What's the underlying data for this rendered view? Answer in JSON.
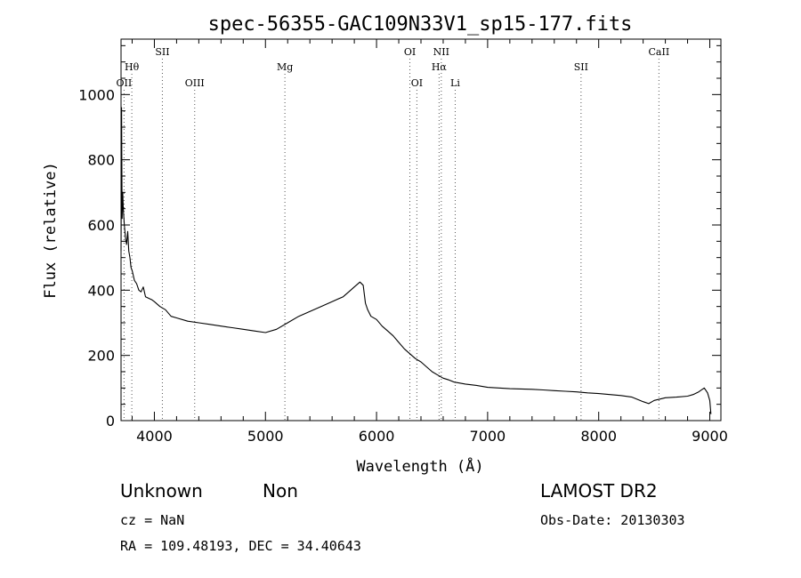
{
  "chart_data": {
    "type": "line",
    "title": "spec-56355-GAC109N33V1_sp15-177.fits",
    "xlabel": "Wavelength (Å)",
    "ylabel": "Flux (relative)",
    "xlim": [
      3700,
      9100
    ],
    "ylim": [
      0,
      1170
    ],
    "xticks": [
      4000,
      5000,
      6000,
      7000,
      8000,
      9000
    ],
    "yticks": [
      0,
      200,
      400,
      600,
      800,
      1000
    ],
    "grid": false,
    "line_color": "#000000",
    "marker_color": "#555555",
    "series": [
      {
        "x": [
          3700,
          3705,
          3710,
          3715,
          3720,
          3730,
          3740,
          3750,
          3760,
          3770,
          3780,
          3790,
          3800,
          3820,
          3840,
          3860,
          3880,
          3900,
          3920,
          3950,
          3980,
          4000,
          4050,
          4100,
          4150,
          4200,
          4300,
          4400,
          4500,
          4600,
          4700,
          4800,
          4900,
          5000,
          5100,
          5200,
          5300,
          5400,
          5500,
          5600,
          5700,
          5750,
          5800,
          5850,
          5880,
          5900,
          5920,
          5950,
          6000,
          6050,
          6100,
          6150,
          6200,
          6250,
          6300,
          6350,
          6400,
          6450,
          6500,
          6550,
          6600,
          6650,
          6700,
          6750,
          6800,
          6900,
          7000,
          7100,
          7200,
          7300,
          7400,
          7500,
          7600,
          7700,
          7800,
          7900,
          8000,
          8100,
          8200,
          8300,
          8400,
          8450,
          8500,
          8600,
          8700,
          8800,
          8850,
          8900,
          8950,
          8980,
          9000,
          9010
        ],
        "y": [
          520,
          960,
          620,
          700,
          650,
          600,
          560,
          540,
          580,
          520,
          500,
          470,
          460,
          430,
          420,
          400,
          395,
          410,
          380,
          375,
          370,
          365,
          350,
          340,
          320,
          315,
          305,
          300,
          295,
          290,
          285,
          280,
          275,
          270,
          280,
          300,
          320,
          335,
          350,
          365,
          380,
          395,
          410,
          425,
          415,
          360,
          340,
          320,
          310,
          290,
          275,
          260,
          240,
          220,
          205,
          190,
          180,
          165,
          150,
          140,
          130,
          125,
          118,
          115,
          112,
          108,
          102,
          100,
          98,
          97,
          96,
          94,
          92,
          90,
          88,
          85,
          83,
          80,
          77,
          72,
          58,
          52,
          62,
          70,
          72,
          75,
          80,
          88,
          100,
          85,
          62,
          20
        ]
      }
    ],
    "lines_top": [
      {
        "label": "SII",
        "x": 4072
      },
      {
        "label": "OI",
        "x": 6300
      },
      {
        "label": "NII",
        "x": 6583
      },
      {
        "label": "CaII",
        "x": 8542
      }
    ],
    "lines_mid": [
      {
        "label": "Hθ",
        "x": 3797
      },
      {
        "label": "Mg",
        "x": 5175
      },
      {
        "label": "Hα",
        "x": 6563
      },
      {
        "label": "SII",
        "x": 7841
      }
    ],
    "lines_low": [
      {
        "label": "OII",
        "x": 3727
      },
      {
        "label": "OIII",
        "x": 4363
      },
      {
        "label": "OI",
        "x": 6363
      },
      {
        "label": "Li",
        "x": 6708
      }
    ]
  },
  "info": {
    "class": "Unknown",
    "subclass": "Non",
    "survey": "LAMOST DR2",
    "cz": "cz = NaN",
    "obs_date": "Obs-Date: 20130303",
    "coords": "RA = 109.48193, DEC =  34.40643"
  }
}
